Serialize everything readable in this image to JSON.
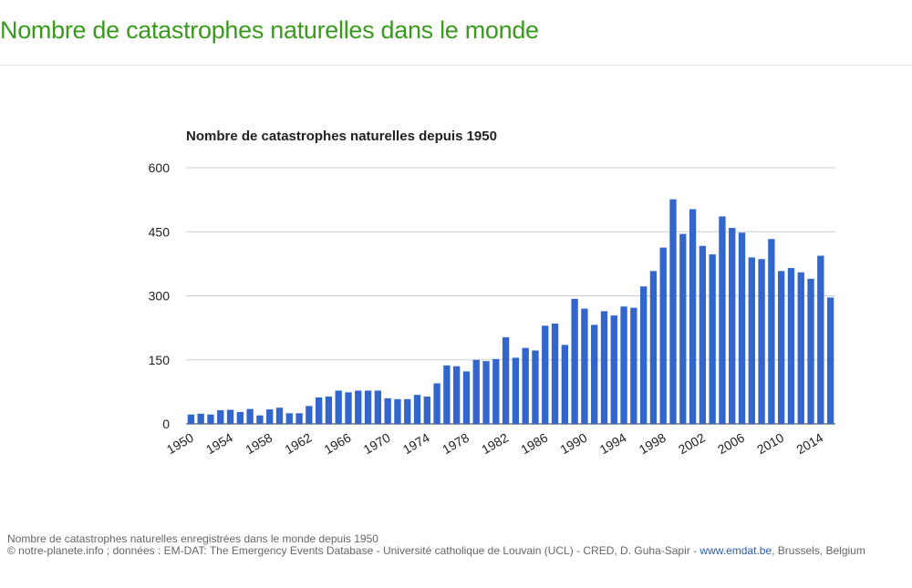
{
  "header": {
    "title": "Nombre de catastrophes naturelles dans le monde"
  },
  "chart_data": {
    "type": "bar",
    "title": "Nombre de catastrophes naturelles depuis 1950",
    "categories": [
      "1950",
      null,
      null,
      null,
      "1954",
      null,
      null,
      null,
      "1958",
      null,
      null,
      null,
      "1962",
      null,
      null,
      null,
      "1966",
      null,
      null,
      null,
      "1970",
      null,
      null,
      null,
      "1974",
      null,
      null,
      null,
      "1978",
      null,
      null,
      null,
      "1982",
      null,
      null,
      null,
      "1986",
      null,
      null,
      null,
      "1990",
      null,
      null,
      null,
      "1994",
      null,
      null,
      null,
      "1998",
      null,
      null,
      null,
      "2002",
      null,
      null,
      null,
      "2006",
      null,
      null,
      null,
      "2010",
      null,
      null,
      null,
      "2014",
      null
    ],
    "values": [
      22,
      24,
      22,
      32,
      33,
      28,
      35,
      20,
      34,
      38,
      25,
      25,
      42,
      62,
      64,
      78,
      74,
      78,
      78,
      78,
      60,
      58,
      58,
      68,
      64,
      95,
      137,
      135,
      123,
      150,
      147,
      152,
      203,
      155,
      178,
      172,
      230,
      235,
      185,
      293,
      270,
      232,
      264,
      254,
      275,
      272,
      322,
      358,
      413,
      526,
      445,
      503,
      417,
      397,
      486,
      459,
      448,
      390,
      386,
      433,
      358,
      365,
      355,
      340,
      394,
      296
    ],
    "color": "#3366cc",
    "ylim": [
      0,
      600
    ],
    "yticks": [
      0,
      150,
      300,
      450,
      600
    ],
    "grid": true
  },
  "caption": {
    "line1": "Nombre de catastrophes naturelles enregistrées dans le monde depuis 1950",
    "line2": "© notre-planete.info ; données : EM-DAT: The Emergency Events Database - Université catholique de Louvain (UCL) - CRED, D. Guha-Sapir - ",
    "link": "www.emdat.be",
    "line3": ", Brussels, Belgium"
  }
}
